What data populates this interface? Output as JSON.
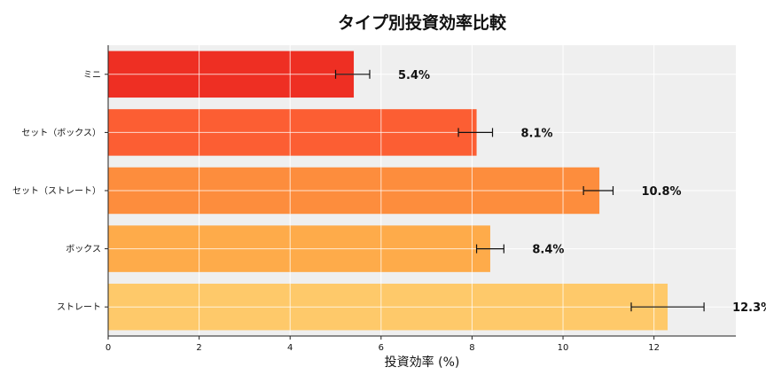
{
  "chart_data": {
    "type": "bar",
    "orientation": "horizontal",
    "title": "タイプ別投資効率比較",
    "xlabel": "投資効率 (%)",
    "ylabel": "",
    "categories": [
      "ミニ",
      "セット（ボックス）",
      "セット（ストレート）",
      "ボックス",
      "ストレート"
    ],
    "values": [
      5.4,
      8.1,
      10.8,
      8.4,
      12.3
    ],
    "error_low": [
      5.0,
      7.7,
      10.45,
      8.1,
      11.5
    ],
    "error_high": [
      5.75,
      8.45,
      11.1,
      8.7,
      13.1
    ],
    "value_labels": [
      "5.4%",
      "8.1%",
      "10.8%",
      "8.4%",
      "12.3%"
    ],
    "colors": [
      "#ee2f23",
      "#fc5e33",
      "#fd8d3d",
      "#feab4a",
      "#fec96a"
    ],
    "xlim": [
      0,
      13.8
    ],
    "xticks": [
      0,
      2,
      4,
      6,
      8,
      10,
      12
    ],
    "xtick_labels": [
      "0",
      "2",
      "4",
      "6",
      "8",
      "10",
      "12"
    ],
    "grid": true,
    "legend": "none"
  }
}
